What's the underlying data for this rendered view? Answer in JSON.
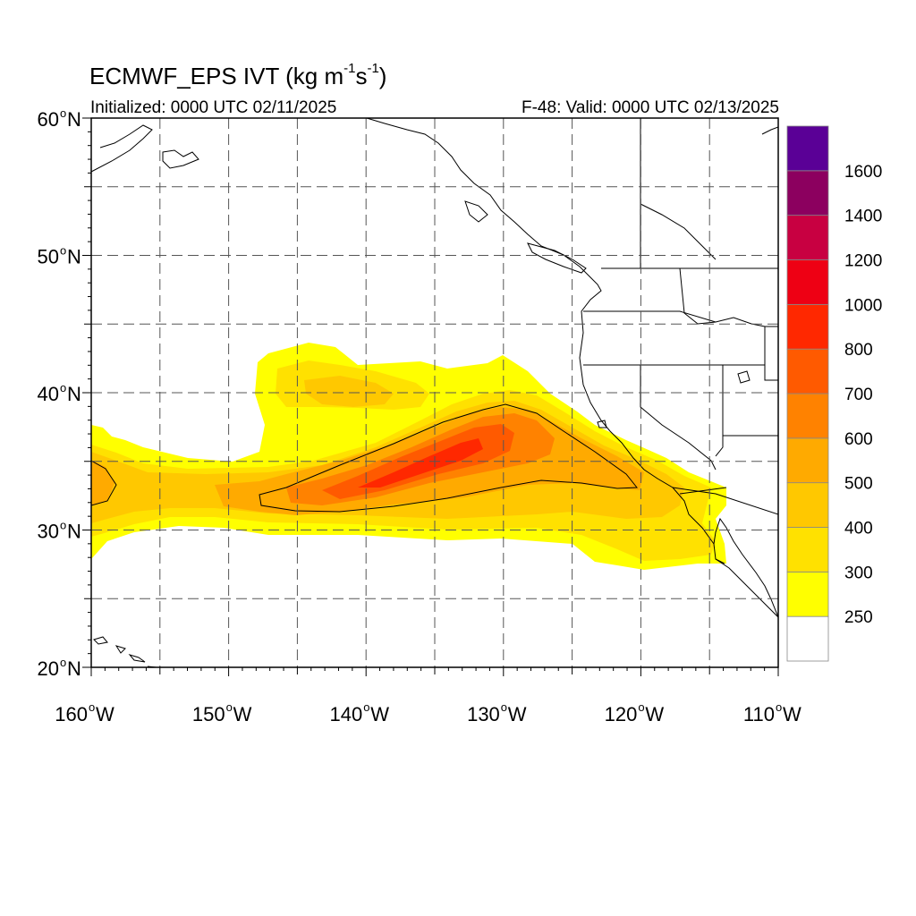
{
  "header": {
    "title_main": "ECMWF_EPS IVT (kg m",
    "title_exp1": "-1",
    "title_mid": "s",
    "title_exp2": "-1",
    "title_end": ")",
    "initialized": "Initialized: 0000 UTC 02/11/2025",
    "valid": "F-48: Valid: 0000 UTC 02/13/2025"
  },
  "map": {
    "lat_range": [
      20,
      60
    ],
    "lon_range": [
      -160,
      -110
    ],
    "lat_labels": [
      {
        "lat": 60,
        "text": "60"
      },
      {
        "lat": 50,
        "text": "50"
      },
      {
        "lat": 40,
        "text": "40"
      },
      {
        "lat": 30,
        "text": "30"
      },
      {
        "lat": 20,
        "text": "20"
      }
    ],
    "lat_suffix": "N",
    "lon_labels": [
      {
        "lon": -160,
        "text": "160"
      },
      {
        "lon": -150,
        "text": "150"
      },
      {
        "lon": -140,
        "text": "140"
      },
      {
        "lon": -130,
        "text": "130"
      },
      {
        "lon": -120,
        "text": "120"
      },
      {
        "lon": -110,
        "text": "110"
      }
    ],
    "lon_suffix": "W",
    "degree_symbol": "o"
  },
  "colorbar": {
    "levels": [
      "250",
      "300",
      "400",
      "500",
      "600",
      "700",
      "800",
      "1000",
      "1200",
      "1400",
      "1600"
    ],
    "colors": [
      "#ffffff",
      "#ffff00",
      "#ffe100",
      "#ffc800",
      "#ffaa00",
      "#ff8200",
      "#ff5a00",
      "#ff2800",
      "#ee0014",
      "#c80041",
      "#8c005f",
      "#5a0096"
    ]
  },
  "colors": {
    "ivt_250": "#ffff00",
    "ivt_300": "#ffe100",
    "ivt_400": "#ffc800",
    "ivt_500": "#ffaa00",
    "ivt_600": "#ff8200",
    "ivt_700": "#ff5a00",
    "ivt_800": "#ff2800"
  }
}
